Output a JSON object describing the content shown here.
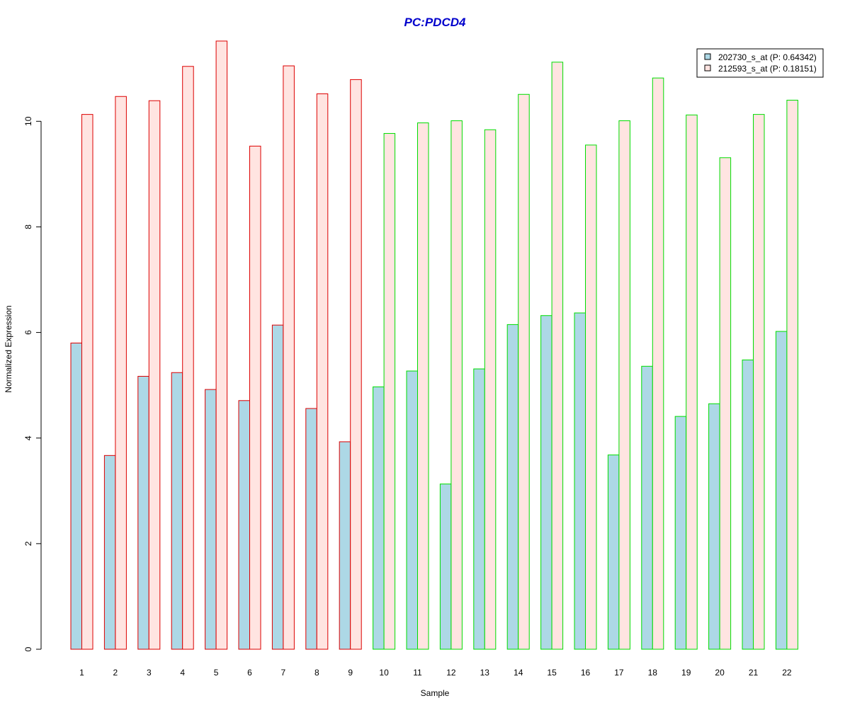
{
  "chart_data": {
    "type": "bar",
    "title": "PC:PDCD4",
    "xlabel": "Sample",
    "ylabel": "Normalized Expression",
    "ylim": [
      0,
      11.6
    ],
    "yticks": [
      "0",
      "2",
      "4",
      "6",
      "8",
      "10"
    ],
    "categories": [
      "1",
      "2",
      "3",
      "4",
      "5",
      "6",
      "7",
      "8",
      "9",
      "10",
      "11",
      "12",
      "13",
      "14",
      "15",
      "16",
      "17",
      "18",
      "19",
      "20",
      "21",
      "22"
    ],
    "groups": [
      {
        "samples": [
          "1",
          "2",
          "3",
          "4",
          "5",
          "6",
          "7",
          "8",
          "9"
        ],
        "border_color": "#dd0000"
      },
      {
        "samples": [
          "10",
          "11",
          "12",
          "13",
          "14",
          "15",
          "16",
          "17",
          "18",
          "19",
          "20",
          "21",
          "22"
        ],
        "border_color": "#00dd00"
      }
    ],
    "series": [
      {
        "name": "202730_s_at (P: 0.64342)",
        "fill": "#add8e6",
        "values": [
          5.8,
          3.67,
          5.17,
          5.24,
          4.92,
          4.71,
          6.14,
          4.56,
          3.93,
          4.97,
          5.27,
          3.13,
          5.31,
          6.15,
          6.32,
          6.37,
          3.68,
          5.36,
          4.41,
          4.65,
          5.48,
          6.02
        ]
      },
      {
        "name": "212593_s_at (P: 0.18151)",
        "fill": "#ffe4e1",
        "values": [
          10.13,
          10.47,
          10.39,
          11.04,
          11.52,
          9.53,
          11.05,
          10.52,
          10.79,
          9.77,
          9.97,
          10.01,
          9.84,
          10.51,
          11.12,
          9.55,
          10.01,
          10.82,
          10.12,
          9.31,
          10.13,
          10.4
        ]
      }
    ],
    "legend_position": "top-right",
    "title_color": "#0000cc"
  }
}
